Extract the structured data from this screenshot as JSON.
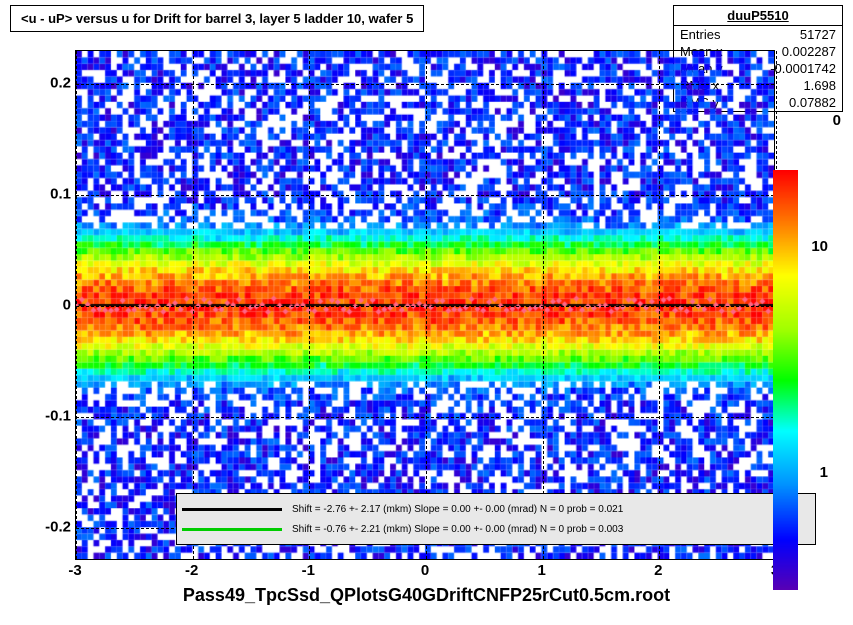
{
  "title": "<u - uP>      versus   u for Drift for barrel 3, layer 5 ladder 10, wafer 5",
  "stats": {
    "name": "duuP5510",
    "entries": "51727",
    "mean_x": "0.002287",
    "mean_y": "-0.0001742",
    "rms_x": "1.698",
    "rms_y": "0.07882"
  },
  "bottom_label": "Pass49_TpcSsd_QPlotsG40GDriftCNFP25rCut0.5cm.root",
  "axes": {
    "xlim": [
      -3,
      3
    ],
    "ylim": [
      -0.23,
      0.23
    ],
    "xticks": [
      -3,
      -2,
      -1,
      0,
      1,
      2,
      3
    ],
    "yticks": [
      -0.2,
      -0.1,
      0,
      0.1,
      0.2
    ]
  },
  "colorscale": {
    "type": "log",
    "min": 0.3,
    "max": 30,
    "ticks": [
      "1",
      "10"
    ],
    "tick_positions": [
      0.72,
      0.18
    ],
    "stops": [
      {
        "p": 0,
        "c": "#5a00b3"
      },
      {
        "p": 0.12,
        "c": "#0000ff"
      },
      {
        "p": 0.25,
        "c": "#0090ff"
      },
      {
        "p": 0.38,
        "c": "#00ffff"
      },
      {
        "p": 0.5,
        "c": "#00ff00"
      },
      {
        "p": 0.62,
        "c": "#a0ff00"
      },
      {
        "p": 0.75,
        "c": "#ffff00"
      },
      {
        "p": 0.87,
        "c": "#ff8000"
      },
      {
        "p": 1,
        "c": "#ff0000"
      }
    ],
    "top_label_0": "0"
  },
  "legend": {
    "rows": [
      {
        "color": "#000000",
        "text": "Shift =    -2.76 +- 2.17 (mkm) Slope =     0.00 +- 0.00 (mrad)  N = 0 prob = 0.021"
      },
      {
        "color": "#00cc00",
        "text": "Shift =    -0.76 +- 2.21 (mkm) Slope =     0.00 +- 0.00 (mrad)  N = 0 prob = 0.003"
      }
    ]
  },
  "heatmap": {
    "nx": 120,
    "ny": 80,
    "peak_y": 0.0,
    "peak_sigma": 0.025,
    "density_peak": 25,
    "bg_density": 0.6
  },
  "profile": {
    "y_center": 0.0,
    "marker_color": "#ff6688",
    "line1_color": "#000000",
    "line2_color": "#00cc00"
  },
  "styling": {
    "background": "#ffffff",
    "grid_color": "#000000",
    "font_family": "Arial",
    "title_fontsize": 13,
    "stats_fontsize": 13,
    "tick_fontsize": 15
  }
}
